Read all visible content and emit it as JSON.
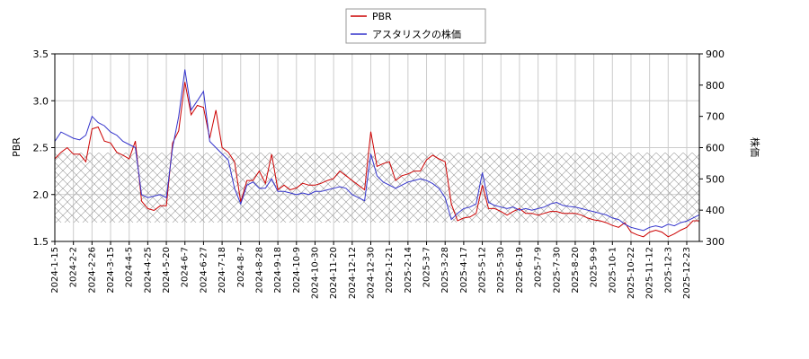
{
  "chart_data": {
    "type": "line",
    "x_label": null,
    "y_label": "PBR",
    "y2_label": "株価",
    "categories": [
      "2024-1-15",
      null,
      null,
      "2024-2-2",
      null,
      null,
      "2024-2-26",
      null,
      null,
      "2024-3-15",
      null,
      null,
      "2024-4-5",
      null,
      null,
      "2024-4-25",
      null,
      null,
      "2024-5-20",
      null,
      null,
      "2024-6-7",
      null,
      null,
      "2024-6-27",
      null,
      null,
      "2024-7-18",
      null,
      null,
      "2024-8-7",
      null,
      null,
      "2024-8-28",
      null,
      null,
      "2024-9-18",
      null,
      null,
      "2024-10-9",
      null,
      null,
      "2024-10-30",
      null,
      null,
      "2024-11-20",
      null,
      null,
      "2024-12-12",
      null,
      null,
      "2024-12-30",
      null,
      null,
      "2025-1-21",
      null,
      null,
      "2025-2-14",
      null,
      null,
      "2025-3-7",
      null,
      null,
      "2025-3-28",
      null,
      null,
      "2025-4-17",
      null,
      null,
      "2025-5-12",
      null,
      null,
      "2025-5-30",
      null,
      null,
      "2025-6-19",
      null,
      null,
      "2025-7-9",
      null,
      null,
      "2025-7-30",
      null,
      null,
      "2025-8-20",
      null,
      null,
      "2025-9-9",
      null,
      null,
      "2025-10-1",
      null,
      null,
      "2025-10-22",
      null,
      null,
      "2025-11-12",
      null,
      null,
      "2025-12-3",
      null,
      null,
      "2025-12-23",
      null,
      null
    ],
    "series": [
      {
        "name": "PBR",
        "color": "#cc0000",
        "axis": "y",
        "values": [
          2.38,
          2.45,
          2.5,
          2.43,
          2.43,
          2.35,
          2.7,
          2.72,
          2.57,
          2.55,
          2.45,
          2.42,
          2.38,
          2.57,
          1.93,
          1.85,
          1.83,
          1.88,
          1.88,
          2.55,
          2.68,
          3.2,
          2.85,
          2.95,
          2.93,
          2.6,
          2.9,
          2.5,
          2.45,
          2.35,
          1.92,
          2.15,
          2.15,
          2.25,
          2.12,
          2.43,
          2.05,
          2.1,
          2.05,
          2.07,
          2.12,
          2.1,
          2.1,
          2.12,
          2.15,
          2.17,
          2.25,
          2.2,
          2.15,
          2.1,
          2.05,
          2.67,
          2.3,
          2.33,
          2.35,
          2.15,
          2.2,
          2.22,
          2.25,
          2.25,
          2.37,
          2.42,
          2.38,
          2.35,
          1.9,
          1.72,
          1.75,
          1.76,
          1.8,
          2.1,
          1.85,
          1.85,
          1.82,
          1.78,
          1.82,
          1.85,
          1.8,
          1.8,
          1.78,
          1.8,
          1.82,
          1.82,
          1.8,
          1.8,
          1.8,
          1.78,
          1.75,
          1.73,
          1.72,
          1.7,
          1.67,
          1.65,
          1.7,
          1.6,
          1.57,
          1.55,
          1.6,
          1.62,
          1.6,
          1.55,
          1.58,
          1.62,
          1.65,
          1.72,
          1.72
        ]
      },
      {
        "name": "アスタリスクの株価",
        "color": "#3333cc",
        "axis": "y2",
        "values": [
          620,
          650,
          640,
          630,
          625,
          640,
          700,
          680,
          670,
          650,
          640,
          620,
          610,
          600,
          450,
          440,
          445,
          450,
          440,
          600,
          700,
          850,
          720,
          750,
          780,
          620,
          600,
          580,
          560,
          470,
          420,
          480,
          490,
          470,
          470,
          500,
          460,
          460,
          455,
          450,
          455,
          450,
          460,
          460,
          465,
          470,
          475,
          470,
          450,
          440,
          430,
          580,
          510,
          490,
          480,
          470,
          480,
          490,
          495,
          500,
          495,
          485,
          470,
          440,
          370,
          390,
          405,
          410,
          420,
          520,
          425,
          415,
          410,
          405,
          410,
          400,
          405,
          400,
          405,
          410,
          420,
          425,
          415,
          412,
          410,
          405,
          400,
          395,
          390,
          385,
          375,
          370,
          355,
          345,
          340,
          335,
          345,
          350,
          345,
          355,
          350,
          360,
          365,
          375,
          385
        ]
      }
    ],
    "ylim": [
      1.5,
      3.5
    ],
    "yticks": [
      1.5,
      {
        "value": 2,
        "label": "2.0"
      },
      2.5,
      {
        "value": 3,
        "label": "3.0"
      },
      3.5
    ],
    "y2lim": [
      300,
      900
    ],
    "y2ticks": [
      300,
      400,
      500,
      600,
      700,
      800,
      900
    ],
    "grid": true,
    "legend": "top"
  }
}
